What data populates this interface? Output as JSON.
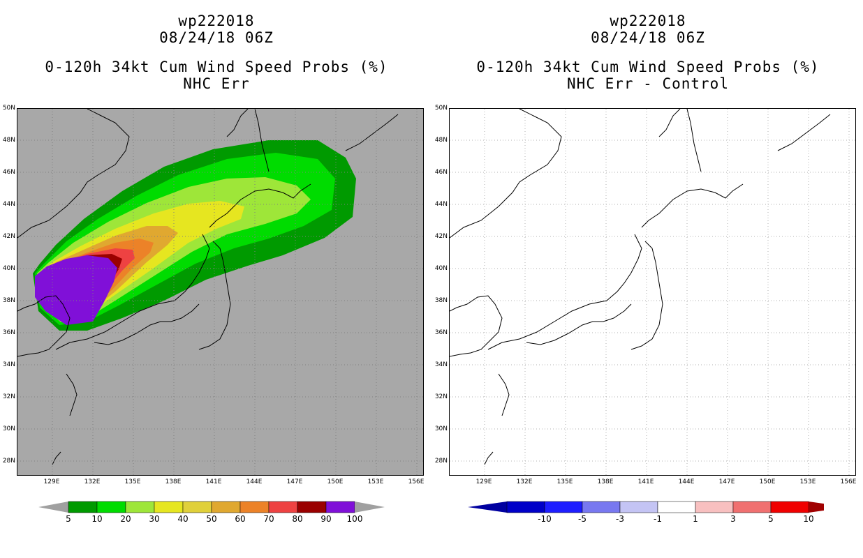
{
  "left": {
    "title": [
      "wp222018",
      "08/24/18 06Z",
      "0-120h 34kt Cum Wind Speed Probs (%)",
      "NHC Err"
    ],
    "background_color": "#a8a8a8",
    "colorbar": {
      "labels": [
        "5",
        "10",
        "20",
        "30",
        "40",
        "50",
        "60",
        "70",
        "80",
        "90",
        "100"
      ],
      "colors": [
        "#009a00",
        "#00dc00",
        "#9ee639",
        "#e6e620",
        "#e0d03a",
        "#e0a830",
        "#ec8228",
        "#ee4242",
        "#9a0000",
        "#8010d8"
      ],
      "end_color": "#a0a0a0"
    }
  },
  "right": {
    "title": [
      "wp222018",
      "08/24/18 06Z",
      "0-120h 34kt Cum Wind Speed Probs (%)",
      "NHC Err - Control"
    ],
    "background_color": "#ffffff",
    "colorbar": {
      "labels": [
        "-10",
        "-5",
        "-3",
        "-1",
        "1",
        "3",
        "5",
        "10"
      ],
      "colors": [
        "#0000c8",
        "#1e1eff",
        "#7878f0",
        "#c4c4f4",
        "#ffffff",
        "#f8c0c0",
        "#f07070",
        "#f00000"
      ],
      "end_left": "#0000a0",
      "end_right": "#a00000"
    }
  },
  "map": {
    "lat_labels": [
      "50N",
      "48N",
      "46N",
      "44N",
      "42N",
      "40N",
      "38N",
      "36N",
      "34N",
      "32N",
      "30N",
      "28N"
    ],
    "lon_labels": [
      "129E",
      "132E",
      "135E",
      "138E",
      "141E",
      "144E",
      "147E",
      "150E",
      "153E",
      "156E"
    ],
    "lat_range": [
      27,
      50
    ],
    "lon_range": [
      127,
      157
    ]
  }
}
